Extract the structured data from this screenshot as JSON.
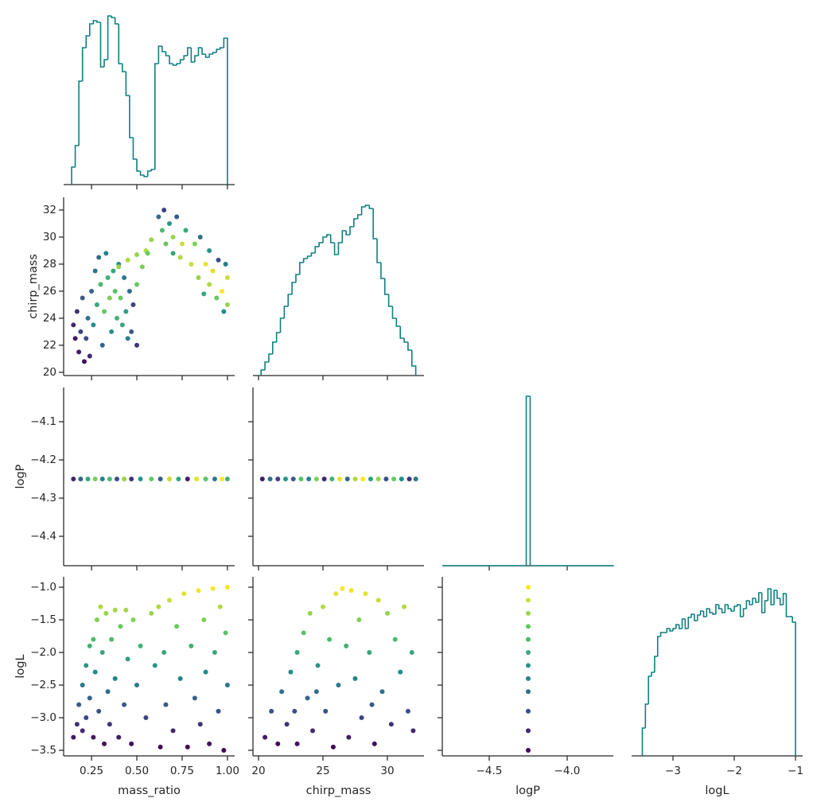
{
  "chart_data": [
    {
      "type": "histogram",
      "color": "#0f7f80",
      "xlim": [
        0.096,
        1.04
      ],
      "xticks": [
        0.25,
        0.5,
        0.75,
        1.0
      ],
      "ylim": [
        0,
        222
      ],
      "bins": [
        0.14,
        0.16,
        0.18,
        0.2,
        0.22,
        0.24,
        0.26,
        0.28,
        0.3,
        0.32,
        0.34,
        0.36,
        0.38,
        0.4,
        0.42,
        0.44,
        0.46,
        0.48,
        0.5,
        0.52,
        0.54,
        0.56,
        0.58,
        0.6,
        0.62,
        0.64,
        0.66,
        0.68,
        0.7,
        0.72,
        0.74,
        0.76,
        0.78,
        0.8,
        0.82,
        0.84,
        0.86,
        0.88,
        0.9,
        0.92,
        0.94,
        0.96,
        0.98,
        1.0
      ],
      "counts": [
        22,
        49,
        130,
        172,
        187,
        202,
        206,
        204,
        148,
        157,
        212,
        210,
        202,
        152,
        142,
        112,
        59,
        32,
        17,
        12,
        10,
        17,
        19,
        152,
        174,
        167,
        162,
        152,
        150,
        152,
        157,
        162,
        172,
        154,
        162,
        172,
        164,
        160,
        164,
        166,
        170,
        172,
        184
      ]
    },
    {
      "type": "scatter",
      "cmap": "viridis",
      "clim": [
        -3.5,
        -1.0
      ],
      "ylabel": "chirp_mass",
      "xlim": [
        0.096,
        1.04
      ],
      "xticks": [
        0.25,
        0.5,
        0.75,
        1.0
      ],
      "ylim": [
        19.76,
        32.94
      ],
      "yticks": [
        20,
        22,
        24,
        26,
        28,
        30,
        32
      ],
      "x": [
        0.15,
        0.16,
        0.17,
        0.18,
        0.19,
        0.2,
        0.21,
        0.22,
        0.23,
        0.24,
        0.25,
        0.26,
        0.27,
        0.28,
        0.29,
        0.3,
        0.31,
        0.32,
        0.33,
        0.34,
        0.35,
        0.36,
        0.37,
        0.38,
        0.39,
        0.4,
        0.41,
        0.42,
        0.43,
        0.44,
        0.45,
        0.46,
        0.47,
        0.48,
        0.5,
        0.4,
        0.45,
        0.5,
        0.55,
        0.5,
        0.53,
        0.56,
        0.58,
        0.62,
        0.64,
        0.65,
        0.66,
        0.68,
        0.7,
        0.72,
        0.74,
        0.75,
        0.77,
        0.8,
        0.82,
        0.84,
        0.85,
        0.88,
        0.9,
        0.9,
        0.92,
        0.94,
        0.95,
        0.97,
        0.98,
        1.0,
        1.0,
        0.99,
        0.87,
        0.7
      ],
      "y": [
        23.5,
        22.5,
        24.5,
        21.5,
        23,
        25.5,
        20.8,
        22.5,
        24,
        21.2,
        26,
        23.5,
        27.5,
        25,
        28.5,
        26.5,
        22,
        24.5,
        28.8,
        27,
        25.5,
        23,
        27.5,
        26,
        24,
        28,
        25.5,
        23.5,
        27,
        24.5,
        22.5,
        26,
        23,
        25,
        22,
        27.8,
        28.3,
        28.7,
        29,
        26.5,
        27.8,
        28.8,
        29.8,
        31.5,
        30.5,
        32,
        29.5,
        31,
        30,
        31.5,
        28.5,
        29.5,
        30.5,
        28,
        29.5,
        27,
        30,
        28,
        26.5,
        29,
        27.5,
        25.5,
        28.3,
        26,
        24.5,
        27,
        25,
        28,
        25.8,
        28.8
      ],
      "c": [
        -3.2,
        -3.3,
        -3.1,
        -3.3,
        -3.0,
        -2.8,
        -3.4,
        -2.9,
        -2.6,
        -3.2,
        -2.7,
        -2.3,
        -2.5,
        -2.0,
        -2.6,
        -1.8,
        -2.7,
        -1.6,
        -2.4,
        -1.9,
        -1.5,
        -2.2,
        -2.0,
        -1.7,
        -1.9,
        -2.3,
        -1.6,
        -2.0,
        -2.5,
        -2.1,
        -2.4,
        -2.6,
        -2.8,
        -3.0,
        -3.1,
        -1.4,
        -1.3,
        -1.4,
        -1.3,
        -1.6,
        -1.5,
        -1.6,
        -1.4,
        -2.6,
        -1.8,
        -3.0,
        -1.6,
        -2.2,
        -1.4,
        -2.8,
        -1.3,
        -1.2,
        -2.0,
        -1.2,
        -1.5,
        -1.4,
        -2.6,
        -1.1,
        -1.3,
        -2.2,
        -1.1,
        -1.6,
        -2.9,
        -1.0,
        -2.3,
        -1.2,
        -1.4,
        -2.5,
        -2.0,
        -2.0
      ]
    },
    {
      "type": "histogram",
      "color": "#0f7f80",
      "xlim": [
        19.57,
        32.84
      ],
      "xticks": [
        20,
        25,
        30
      ],
      "ylim": [
        0,
        224
      ],
      "bins": [
        20.2,
        20.5,
        20.8,
        21.1,
        21.4,
        21.7,
        22.0,
        22.3,
        22.6,
        22.9,
        23.2,
        23.5,
        23.8,
        24.1,
        24.4,
        24.7,
        25.0,
        25.3,
        25.6,
        25.9,
        26.2,
        26.5,
        26.8,
        27.1,
        27.4,
        27.7,
        28.0,
        28.3,
        28.6,
        28.9,
        29.2,
        29.5,
        29.8,
        30.1,
        30.4,
        30.7,
        31.0,
        31.3,
        31.6,
        31.9,
        32.2
      ],
      "counts": [
        7,
        17,
        27,
        42,
        54,
        72,
        87,
        102,
        117,
        127,
        142,
        147,
        150,
        154,
        162,
        167,
        174,
        177,
        167,
        152,
        167,
        182,
        177,
        187,
        197,
        202,
        212,
        214,
        210,
        172,
        142,
        122,
        102,
        87,
        72,
        62,
        47,
        42,
        32,
        12
      ]
    },
    {
      "type": "scatter",
      "cmap": "viridis",
      "clim": [
        -3.5,
        -1.0
      ],
      "ylabel": "logP",
      "xlim": [
        0.096,
        1.04
      ],
      "xticks": [
        0.25,
        0.5,
        0.75,
        1.0
      ],
      "ylim": [
        -4.477,
        -4.0104
      ],
      "yticks": [
        {
          "value": -4.4,
          "label": "−4.4"
        },
        {
          "value": -4.3,
          "label": "−4.3"
        },
        {
          "value": -4.2,
          "label": "−4.2"
        },
        {
          "value": -4.1,
          "label": "−4.1"
        }
      ],
      "x": [
        0.15,
        0.19,
        0.23,
        0.27,
        0.31,
        0.35,
        0.39,
        0.43,
        0.47,
        0.52,
        0.58,
        0.63,
        0.68,
        0.73,
        0.78,
        0.83,
        0.88,
        0.93,
        0.97,
        1.0
      ],
      "y": [
        -4.25,
        -4.25,
        -4.25,
        -4.25,
        -4.25,
        -4.25,
        -4.25,
        -4.25,
        -4.25,
        -4.25,
        -4.25,
        -4.25,
        -4.25,
        -4.25,
        -4.25,
        -4.25,
        -4.25,
        -4.25,
        -4.25,
        -4.25
      ],
      "c": [
        -3.2,
        -2.7,
        -2.0,
        -1.5,
        -2.4,
        -1.8,
        -2.9,
        -1.4,
        -3.1,
        -2.2,
        -1.6,
        -2.8,
        -1.2,
        -2.0,
        -3.3,
        -1.1,
        -1.7,
        -2.5,
        -1.0,
        -1.9
      ]
    },
    {
      "type": "scatter",
      "cmap": "viridis",
      "clim": [
        -3.5,
        -1.0
      ],
      "xlim": [
        19.57,
        32.84
      ],
      "xticks": [
        20,
        25,
        30
      ],
      "ylim": [
        -4.477,
        -4.0104
      ],
      "yticks": [
        -4.4,
        -4.3,
        -4.2,
        -4.1
      ],
      "x": [
        20.3,
        20.9,
        21.5,
        22.1,
        22.7,
        23.3,
        23.9,
        24.5,
        25.1,
        25.7,
        26.3,
        26.9,
        27.5,
        28.1,
        28.7,
        29.3,
        29.9,
        30.5,
        31.1,
        31.7,
        32.2
      ],
      "y": [
        -4.25,
        -4.25,
        -4.25,
        -4.25,
        -4.25,
        -4.25,
        -4.25,
        -4.25,
        -4.25,
        -4.25,
        -4.25,
        -4.25,
        -4.25,
        -4.25,
        -4.25,
        -4.25,
        -4.25,
        -4.25,
        -4.25,
        -4.25,
        -4.25
      ],
      "c": [
        -3.3,
        -2.6,
        -3.0,
        -2.2,
        -2.8,
        -1.7,
        -2.4,
        -1.5,
        -3.2,
        -1.9,
        -1.1,
        -2.7,
        -1.3,
        -1.0,
        -2.1,
        -1.4,
        -2.9,
        -1.6,
        -2.3,
        -3.1,
        -2.5
      ]
    },
    {
      "type": "histogram",
      "color": "#0f7f80",
      "xlim": [
        -4.801,
        -3.704
      ],
      "xticks": [
        -4.5,
        -4.0
      ],
      "ylim": [
        0,
        224
      ],
      "bins": [
        -4.8,
        -4.2625,
        -4.2375,
        -3.7
      ],
      "counts": [
        0,
        213,
        0
      ]
    },
    {
      "type": "scatter",
      "cmap": "viridis",
      "clim": [
        -3.5,
        -1.0
      ],
      "xlabel": "mass_ratio",
      "ylabel": "logL",
      "xlim": [
        0.096,
        1.04
      ],
      "xticks": [
        {
          "value": 0.25,
          "label": "0.25"
        },
        {
          "value": 0.5,
          "label": "0.50"
        },
        {
          "value": 0.75,
          "label": "0.75"
        },
        {
          "value": 1.0,
          "label": "1.00"
        }
      ],
      "ylim": [
        -3.585,
        -0.841
      ],
      "yticks": [
        {
          "value": -3.5,
          "label": "−3.5"
        },
        {
          "value": -3.0,
          "label": "−3.0"
        },
        {
          "value": -2.5,
          "label": "−2.5"
        },
        {
          "value": -2.0,
          "label": "−2.0"
        },
        {
          "value": -1.5,
          "label": "−1.5"
        },
        {
          "value": -1.0,
          "label": "−1.0"
        }
      ],
      "x": [
        0.15,
        0.17,
        0.18,
        0.2,
        0.2,
        0.22,
        0.22,
        0.24,
        0.24,
        0.26,
        0.26,
        0.27,
        0.28,
        0.29,
        0.3,
        0.31,
        0.32,
        0.33,
        0.34,
        0.35,
        0.36,
        0.38,
        0.38,
        0.4,
        0.41,
        0.43,
        0.44,
        0.45,
        0.47,
        0.48,
        0.5,
        0.52,
        0.55,
        0.58,
        0.6,
        0.62,
        0.63,
        0.65,
        0.66,
        0.68,
        0.7,
        0.72,
        0.74,
        0.76,
        0.78,
        0.8,
        0.82,
        0.84,
        0.85,
        0.87,
        0.88,
        0.9,
        0.92,
        0.93,
        0.95,
        0.96,
        0.98,
        0.99,
        1.0,
        1.0
      ],
      "y": [
        -3.3,
        -3.1,
        -2.8,
        -3.2,
        -2.5,
        -2.2,
        -3.0,
        -1.9,
        -2.7,
        -1.8,
        -3.3,
        -2.3,
        -1.5,
        -2.9,
        -1.3,
        -2.0,
        -3.4,
        -1.4,
        -2.6,
        -3.1,
        -1.8,
        -1.35,
        -2.4,
        -3.3,
        -1.6,
        -2.8,
        -1.35,
        -2.1,
        -3.4,
        -1.5,
        -2.5,
        -1.9,
        -3.0,
        -1.4,
        -2.2,
        -1.3,
        -3.45,
        -2.0,
        -2.8,
        -1.2,
        -3.2,
        -1.6,
        -2.4,
        -1.1,
        -3.45,
        -1.9,
        -2.7,
        -1.05,
        -3.1,
        -1.5,
        -2.3,
        -3.4,
        -1.02,
        -2.0,
        -2.9,
        -1.3,
        -3.5,
        -1.7,
        -1.0,
        -2.5
      ],
      "c": [
        -3.3,
        -3.1,
        -2.8,
        -3.2,
        -2.5,
        -2.2,
        -3.0,
        -1.9,
        -2.7,
        -1.8,
        -3.3,
        -2.3,
        -1.5,
        -2.9,
        -1.3,
        -2.0,
        -3.4,
        -1.4,
        -2.6,
        -3.1,
        -1.8,
        -1.35,
        -2.4,
        -3.3,
        -1.6,
        -2.8,
        -1.35,
        -2.1,
        -3.4,
        -1.5,
        -2.5,
        -1.9,
        -3.0,
        -1.4,
        -2.2,
        -1.3,
        -3.45,
        -2.0,
        -2.8,
        -1.2,
        -3.2,
        -1.6,
        -2.4,
        -1.1,
        -3.45,
        -1.9,
        -2.7,
        -1.05,
        -3.1,
        -1.5,
        -2.3,
        -3.4,
        -1.02,
        -2.0,
        -2.9,
        -1.3,
        -3.5,
        -1.7,
        -1.0,
        -2.5
      ]
    },
    {
      "type": "scatter",
      "cmap": "viridis",
      "clim": [
        -3.5,
        -1.0
      ],
      "xlabel": "chirp_mass",
      "xlim": [
        19.57,
        32.84
      ],
      "xticks": [
        20,
        25,
        30
      ],
      "ylim": [
        -3.585,
        -0.841
      ],
      "yticks": [
        -3.5,
        -3.0,
        -2.5,
        -2.0,
        -1.5,
        -1.0
      ],
      "x": [
        20.5,
        21,
        21.5,
        21.8,
        22.2,
        22.5,
        23,
        23,
        23.5,
        23.8,
        24,
        24.2,
        24.6,
        25,
        25.2,
        25.5,
        25.8,
        26,
        26.2,
        26.5,
        26.8,
        27,
        27.2,
        27.5,
        27.8,
        28,
        28.3,
        28.6,
        29,
        29.3,
        29.6,
        30,
        30.3,
        30.6,
        31,
        31.3,
        31.6,
        31.9,
        32,
        24.5,
        28.8,
        22.8
      ],
      "y": [
        -3.3,
        -2.9,
        -3.4,
        -2.6,
        -3.1,
        -2.3,
        -2.0,
        -3.4,
        -1.7,
        -2.7,
        -1.4,
        -3.2,
        -2.2,
        -1.3,
        -2.9,
        -1.8,
        -3.45,
        -1.1,
        -2.5,
        -1.02,
        -1.9,
        -3.3,
        -1.05,
        -2.4,
        -1.5,
        -3.0,
        -1.1,
        -2.0,
        -3.4,
        -1.2,
        -2.6,
        -1.4,
        -3.1,
        -1.8,
        -2.3,
        -1.3,
        -2.9,
        -2.0,
        -3.2,
        -2.6,
        -2.8,
        -2.9
      ],
      "c": [
        -3.3,
        -2.9,
        -3.4,
        -2.6,
        -3.1,
        -2.3,
        -2.0,
        -3.4,
        -1.7,
        -2.7,
        -1.4,
        -3.2,
        -2.2,
        -1.3,
        -2.9,
        -1.8,
        -3.45,
        -1.1,
        -2.5,
        -1.02,
        -1.9,
        -3.3,
        -1.05,
        -2.4,
        -1.5,
        -3.0,
        -1.1,
        -2.0,
        -3.4,
        -1.2,
        -2.6,
        -1.4,
        -3.1,
        -1.8,
        -2.3,
        -1.3,
        -2.9,
        -2.0,
        -3.2,
        -2.6,
        -2.8,
        -2.9
      ]
    },
    {
      "type": "scatter",
      "cmap": "viridis",
      "clim": [
        -3.5,
        -1.0
      ],
      "xlabel": "logP",
      "xlim": [
        -4.801,
        -3.704
      ],
      "xticks": [
        {
          "value": -4.5,
          "label": "−4.5"
        },
        {
          "value": -4.0,
          "label": "−4.0"
        }
      ],
      "ylim": [
        -3.585,
        -0.841
      ],
      "yticks": [
        -3.5,
        -3.0,
        -2.5,
        -2.0,
        -1.5,
        -1.0
      ],
      "x": [
        -4.25,
        -4.25,
        -4.25,
        -4.25,
        -4.25,
        -4.25,
        -4.25,
        -4.25,
        -4.25,
        -4.25,
        -4.25,
        -4.25
      ],
      "y": [
        -1.0,
        -1.2,
        -1.4,
        -1.6,
        -1.8,
        -2.0,
        -2.2,
        -2.4,
        -2.6,
        -2.9,
        -3.2,
        -3.5
      ],
      "c": [
        -1.0,
        -1.2,
        -1.4,
        -1.6,
        -1.8,
        -2.0,
        -2.2,
        -2.4,
        -2.6,
        -2.9,
        -3.2,
        -3.5
      ]
    },
    {
      "type": "histogram",
      "color": "#0f7f80",
      "xlabel": "logL",
      "xlim": [
        -3.675,
        -0.883
      ],
      "xticks": [
        {
          "value": -3,
          "label": "−3"
        },
        {
          "value": -2,
          "label": "−2"
        },
        {
          "value": -1,
          "label": "−1"
        }
      ],
      "ylim": [
        0,
        225
      ],
      "bins": [
        -3.5,
        -3.45,
        -3.4,
        -3.35,
        -3.3,
        -3.25,
        -3.2,
        -3.15,
        -3.1,
        -3.05,
        -3.0,
        -2.95,
        -2.9,
        -2.85,
        -2.8,
        -2.75,
        -2.7,
        -2.65,
        -2.6,
        -2.55,
        -2.5,
        -2.45,
        -2.4,
        -2.35,
        -2.3,
        -2.25,
        -2.2,
        -2.15,
        -2.1,
        -2.05,
        -2.0,
        -1.95,
        -1.9,
        -1.85,
        -1.8,
        -1.75,
        -1.7,
        -1.65,
        -1.6,
        -1.55,
        -1.5,
        -1.45,
        -1.4,
        -1.35,
        -1.3,
        -1.25,
        -1.2,
        -1.15,
        -1.1,
        -1.05,
        -1.0
      ],
      "counts": [
        35,
        65,
        100,
        105,
        125,
        150,
        155,
        155,
        160,
        157,
        160,
        165,
        160,
        172,
        160,
        174,
        178,
        170,
        177,
        182,
        175,
        185,
        180,
        178,
        190,
        185,
        180,
        190,
        185,
        182,
        188,
        190,
        175,
        185,
        195,
        190,
        198,
        193,
        205,
        180,
        195,
        210,
        190,
        208,
        198,
        190,
        204,
        175,
        175,
        168
      ]
    }
  ]
}
